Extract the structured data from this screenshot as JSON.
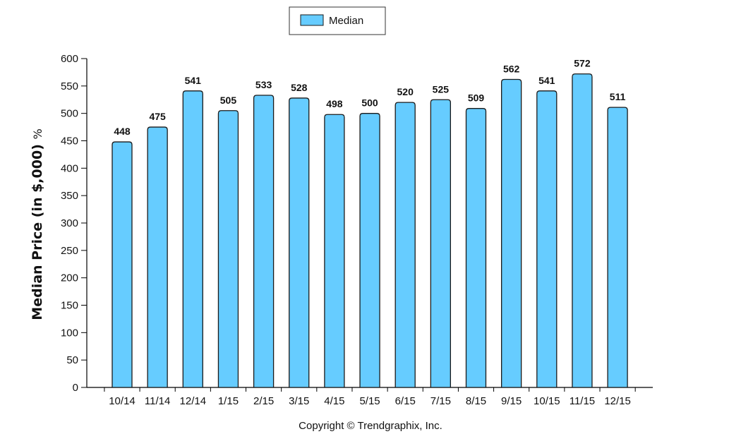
{
  "chart_data": {
    "type": "bar",
    "categories": [
      "10/14",
      "11/14",
      "12/14",
      "1/15",
      "2/15",
      "3/15",
      "4/15",
      "5/15",
      "6/15",
      "7/15",
      "8/15",
      "9/15",
      "10/15",
      "11/15",
      "12/15"
    ],
    "series": [
      {
        "name": "Median",
        "values": [
          448,
          475,
          541,
          505,
          533,
          528,
          498,
          500,
          520,
          525,
          509,
          562,
          541,
          572,
          511
        ]
      }
    ],
    "ylabel": "Median Price (in $,000)",
    "ylabel_unit": "%",
    "ylim": [
      0,
      600
    ],
    "yticks": [
      0,
      50,
      100,
      150,
      200,
      250,
      300,
      350,
      400,
      450,
      500,
      550,
      600
    ],
    "legend_position": "top-center",
    "grid": false,
    "bar_color": "#66CCFF",
    "bar_stroke": "#1a1a1a"
  },
  "footer": {
    "copyright": "Copyright © Trendgraphix, Inc."
  }
}
